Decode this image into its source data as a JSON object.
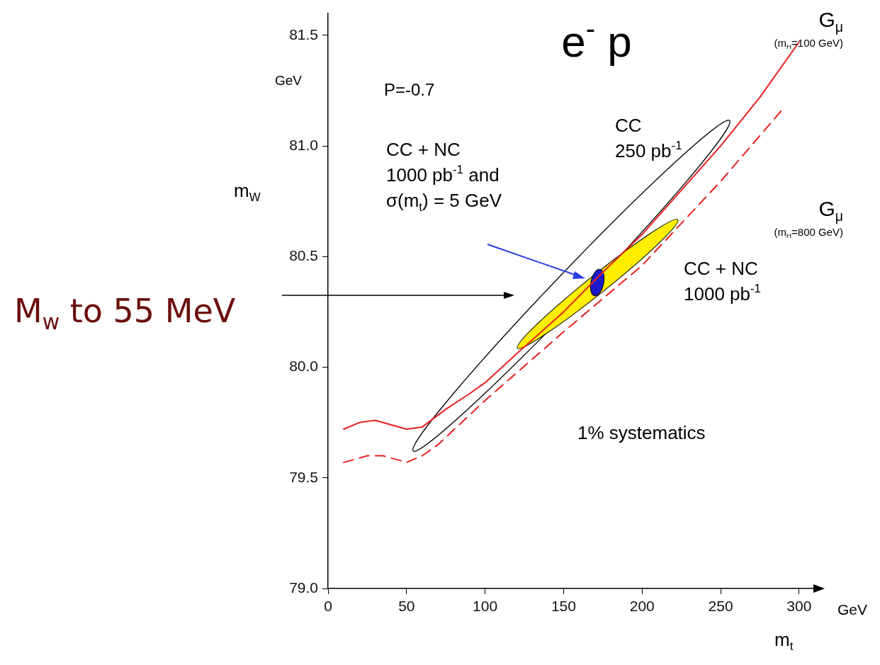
{
  "chart_data": {
    "type": "line",
    "title": "e$^{-}$ p",
    "xlabel": "m$_{t}$",
    "ylabel": "m$_{W}$",
    "xlim": [
      0,
      310
    ],
    "ylim": [
      79.0,
      81.6
    ],
    "xticks": [
      0,
      50,
      100,
      150,
      200,
      250,
      300
    ],
    "yticks": [
      {
        "value": 79.0,
        "label": "79.0"
      },
      {
        "value": 79.5,
        "label": "79.5"
      },
      {
        "value": 80.0,
        "label": "80.0"
      },
      {
        "value": 80.5,
        "label": "80.5"
      },
      {
        "value": 81.0,
        "label": "81.0"
      },
      {
        "value": 81.5,
        "label": "81.5"
      }
    ],
    "grid": false,
    "legend": false,
    "marker": "none",
    "series": [
      {
        "name": "G$_{μ}$\n(m$_{H}$=100 GeV)",
        "type": "line",
        "color": "#e8201e",
        "x": [
          10,
          20,
          30,
          40,
          50,
          60,
          75,
          90,
          100,
          120,
          150,
          175,
          200,
          225,
          250,
          275,
          300
        ],
        "values": [
          79.72,
          79.75,
          79.76,
          79.74,
          79.72,
          79.73,
          79.81,
          79.88,
          79.93,
          80.06,
          80.25,
          80.43,
          80.6,
          80.8,
          81.0,
          81.22,
          81.47
        ]
      },
      {
        "name": "G$_{μ}$\n(m$_{H}$=800 GeV)",
        "type": "line",
        "line_style": "dashed",
        "color": "#e8201e",
        "x": [
          10,
          25,
          35,
          50,
          60,
          70,
          100,
          150,
          200,
          250,
          290
        ],
        "values": [
          79.57,
          79.6,
          79.6,
          79.57,
          79.6,
          79.65,
          79.85,
          80.16,
          80.46,
          80.84,
          81.17
        ]
      }
    ],
    "annotations": [
      "P=-0.7",
      "1% systematics",
      "GeV",
      "GeV",
      "CC\n250 pb$^{-1}$",
      "CC + NC\n1000 pb$^{-1}$",
      "CC + NC\n1000 pb$^{-1}$ and\nσ(m$_{t}$) = 5 GeV",
      "M$_{w}$ to 55 MeV"
    ]
  }
}
